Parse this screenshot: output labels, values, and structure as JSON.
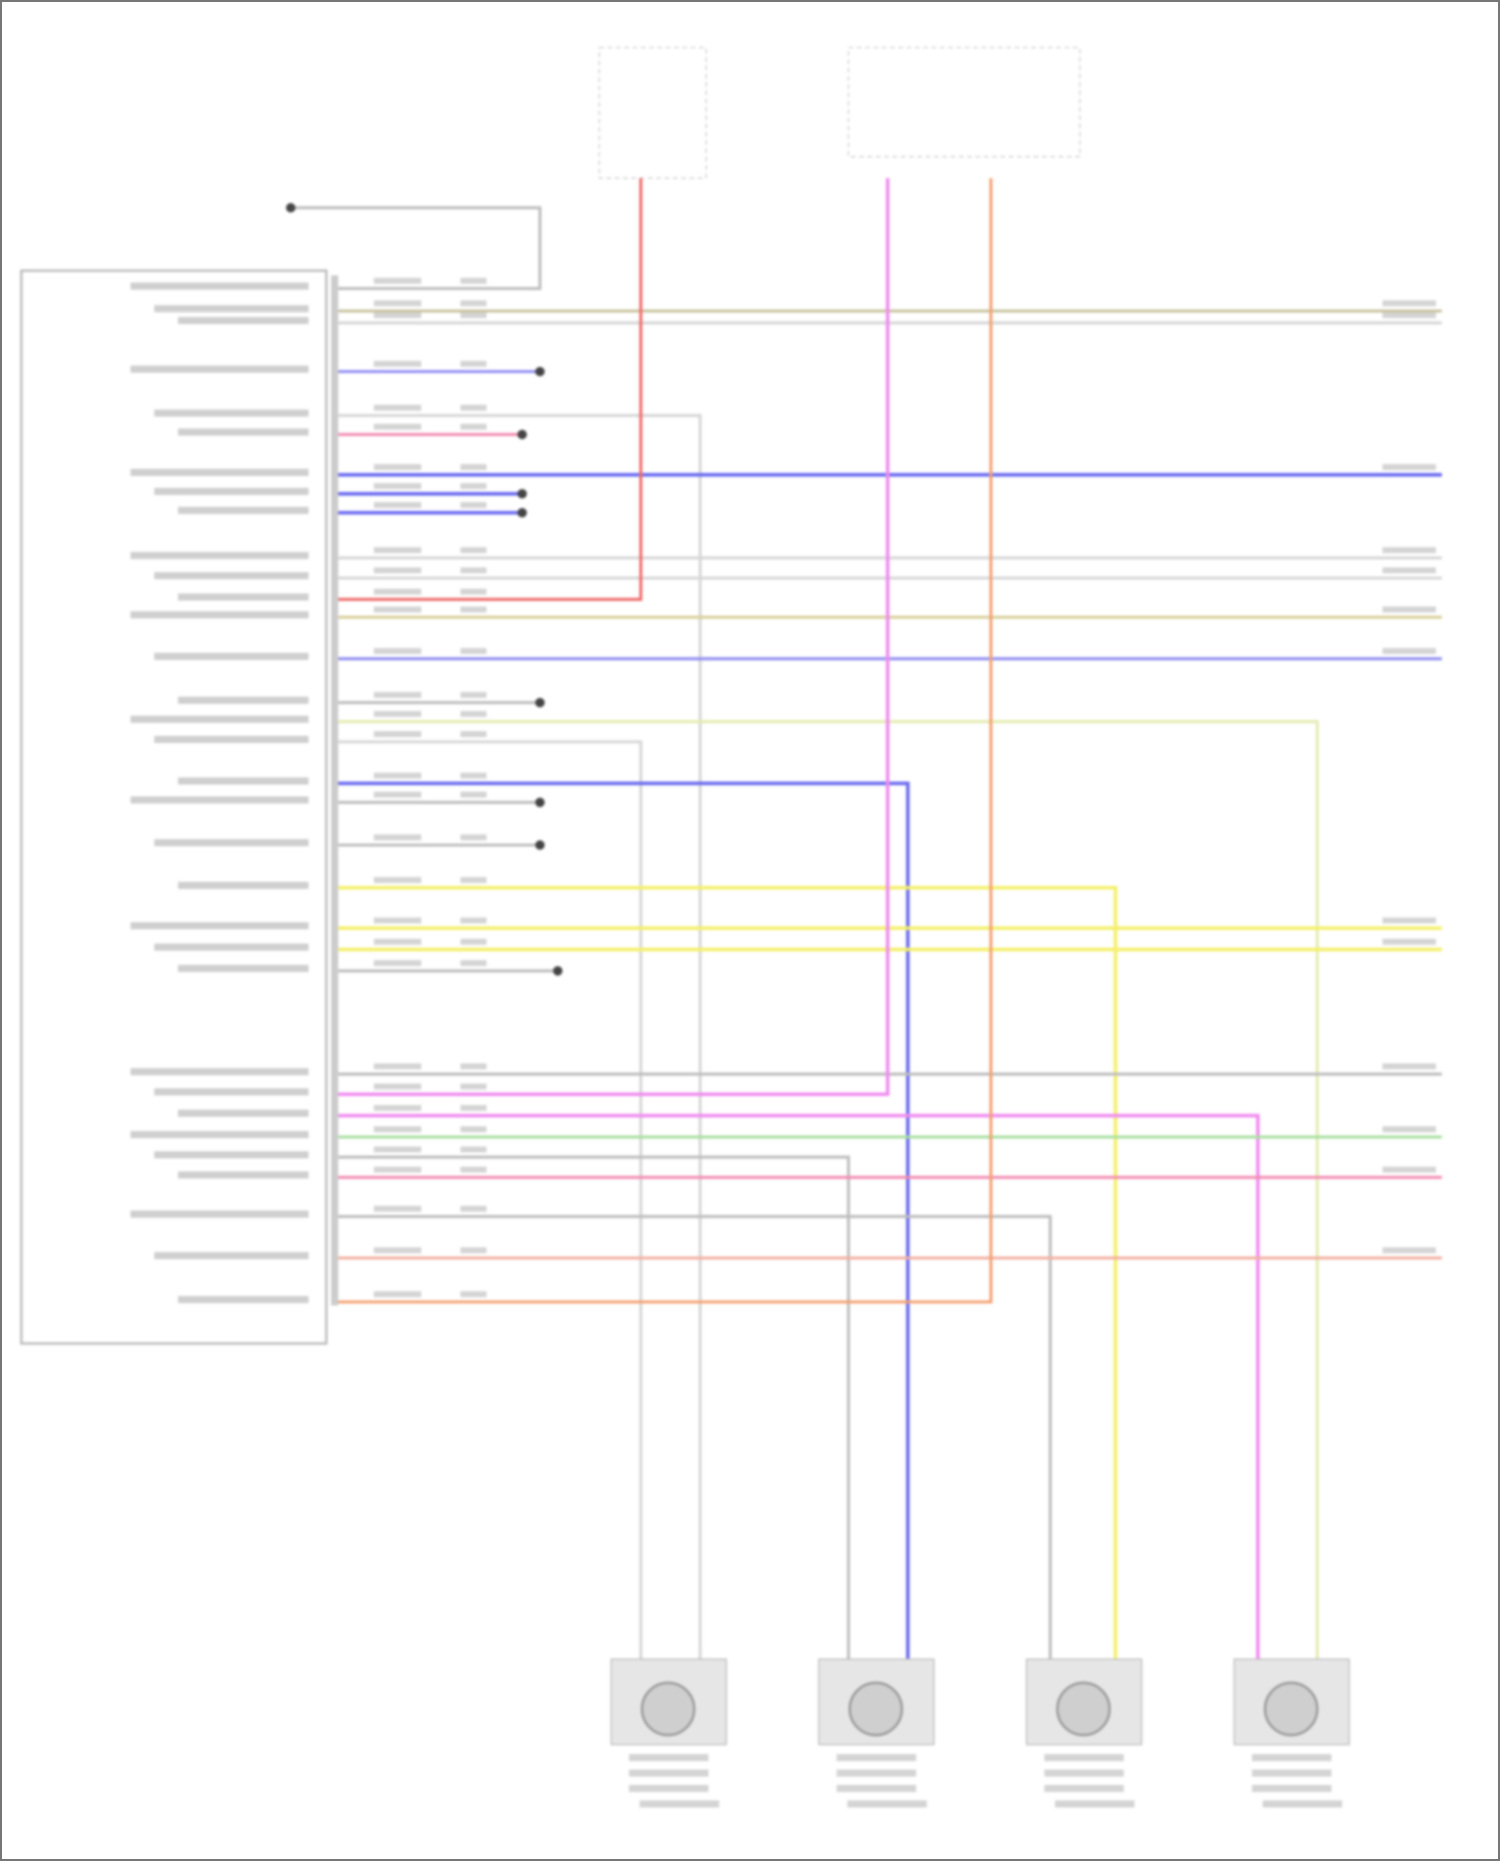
{
  "diagram": {
    "wire_colors": {
      "gray": "#bdbdbd",
      "tan": "#c9c3a0",
      "light_gray": "#d6d6d6",
      "blue_violet": "#8f8cf0",
      "blue": "#6a6af0",
      "pink": "#f28cb0",
      "red": "#ef6a6a",
      "khaki": "#d8cf9a",
      "yellow_green": "#e4ecb0",
      "yellow": "#f4f06a",
      "magenta": "#f08cf0",
      "green": "#a8e0a0",
      "salmon": "#f2b0a0",
      "orange": "#f4a070"
    },
    "components": [
      "control-module",
      "fuse-box-left",
      "fuse-box-right",
      "wheel-speed-sensor-left-rear",
      "wheel-speed-sensor-left-front",
      "wheel-speed-sensor-right-front",
      "wheel-speed-sensor-right-rear"
    ]
  }
}
